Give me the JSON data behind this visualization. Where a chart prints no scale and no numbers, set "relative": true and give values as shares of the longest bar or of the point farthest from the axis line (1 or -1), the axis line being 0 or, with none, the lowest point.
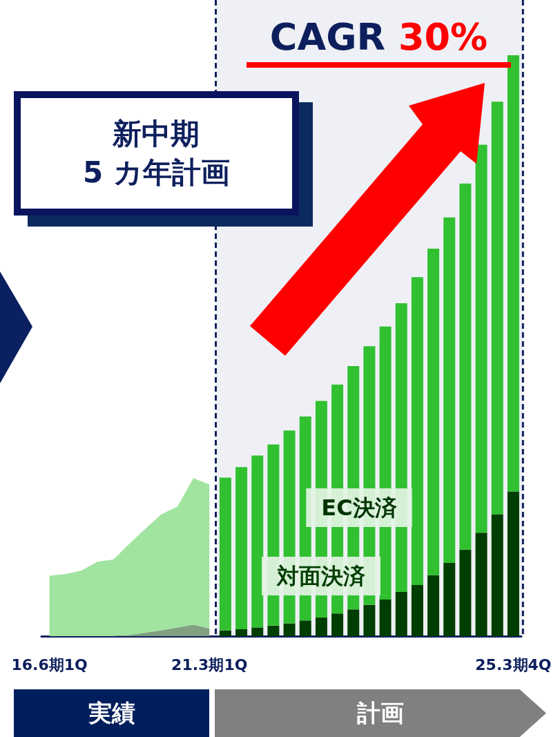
{
  "chart_data": {
    "type": "bar",
    "stacked": true,
    "relative": true,
    "title": "CAGR 30%",
    "annotations": [
      "新中期\n5 カ年計画",
      "実績",
      "計画"
    ],
    "categories": [
      "16.6期1Q",
      null,
      null,
      null,
      null,
      null,
      null,
      null,
      null,
      null,
      "21.3期1Q",
      null,
      null,
      null,
      null,
      null,
      null,
      null,
      null,
      null,
      null,
      null,
      null,
      null,
      null,
      null,
      null,
      null,
      null,
      "25.3期4Q"
    ],
    "series": [
      {
        "type": "area",
        "color": "#80a080",
        "values": [
          0,
          0,
          0,
          0,
          0,
          0.002,
          0.006,
          0.01,
          0.015,
          0.02,
          0.013,
          null,
          null,
          null,
          null,
          null,
          null,
          null,
          null,
          null,
          null,
          null,
          null,
          null,
          null,
          null,
          null,
          null,
          null,
          null
        ]
      },
      {
        "type": "area",
        "color": "#a0e4a0",
        "values": [
          0.104,
          0.107,
          0.113,
          0.128,
          0.132,
          0.157,
          0.179,
          0.2,
          0.208,
          0.252,
          0.248,
          null,
          null,
          null,
          null,
          null,
          null,
          null,
          null,
          null,
          null,
          null,
          null,
          null,
          null,
          null,
          null,
          null,
          null,
          null
        ]
      },
      {
        "name": "対面決済",
        "color": "#003d00",
        "values": [
          null,
          null,
          null,
          null,
          null,
          null,
          null,
          null,
          null,
          null,
          null,
          0.01,
          0.012,
          0.015,
          0.018,
          0.022,
          0.027,
          0.032,
          0.039,
          0.046,
          0.054,
          0.063,
          0.076,
          0.088,
          0.105,
          0.126,
          0.149,
          0.178,
          0.21,
          0.249
        ]
      },
      {
        "name": "EC決済",
        "color": "#30c030",
        "values": [
          null,
          null,
          null,
          null,
          null,
          null,
          null,
          null,
          null,
          null,
          null,
          0.263,
          0.279,
          0.296,
          0.312,
          0.332,
          0.351,
          0.373,
          0.394,
          0.419,
          0.445,
          0.47,
          0.497,
          0.53,
          0.562,
          0.595,
          0.63,
          0.668,
          0.71,
          0.751
        ]
      }
    ],
    "bands": [
      {
        "axis": "x",
        "from": "21.3期1Q",
        "to": "25.3期4Q",
        "color": "#eef0f5"
      }
    ]
  }
}
